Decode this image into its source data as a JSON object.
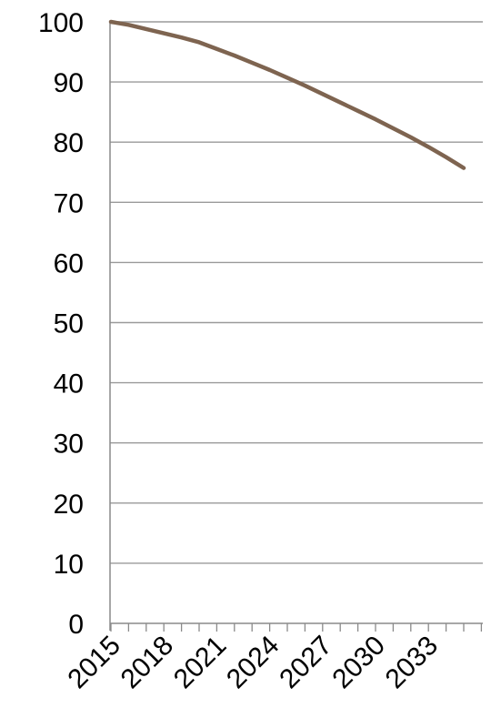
{
  "chart_data": {
    "type": "line",
    "title": "",
    "xlabel": "",
    "ylabel": "",
    "xlim": [
      2015,
      2035
    ],
    "ylim": [
      0,
      100
    ],
    "x_tick_labels": [
      "2015",
      "2018",
      "2021",
      "2024",
      "2027",
      "2030",
      "2033"
    ],
    "y_tick_labels": [
      "0",
      "10",
      "20",
      "30",
      "40",
      "50",
      "60",
      "70",
      "80",
      "90",
      "100"
    ],
    "grid": "horizontal",
    "legend": "none",
    "series": [
      {
        "color": "#7e6450",
        "x": [
          2015,
          2016,
          2017,
          2018,
          2019,
          2020,
          2021,
          2022,
          2023,
          2024,
          2025,
          2026,
          2027,
          2028,
          2029,
          2030,
          2031,
          2032,
          2033,
          2034,
          2035
        ],
        "y": [
          100,
          99.5,
          98.8,
          98.1,
          97.4,
          96.6,
          95.5,
          94.4,
          93.2,
          92.0,
          90.7,
          89.4,
          88.0,
          86.6,
          85.2,
          83.8,
          82.3,
          80.8,
          79.2,
          77.5,
          75.7
        ]
      }
    ]
  }
}
